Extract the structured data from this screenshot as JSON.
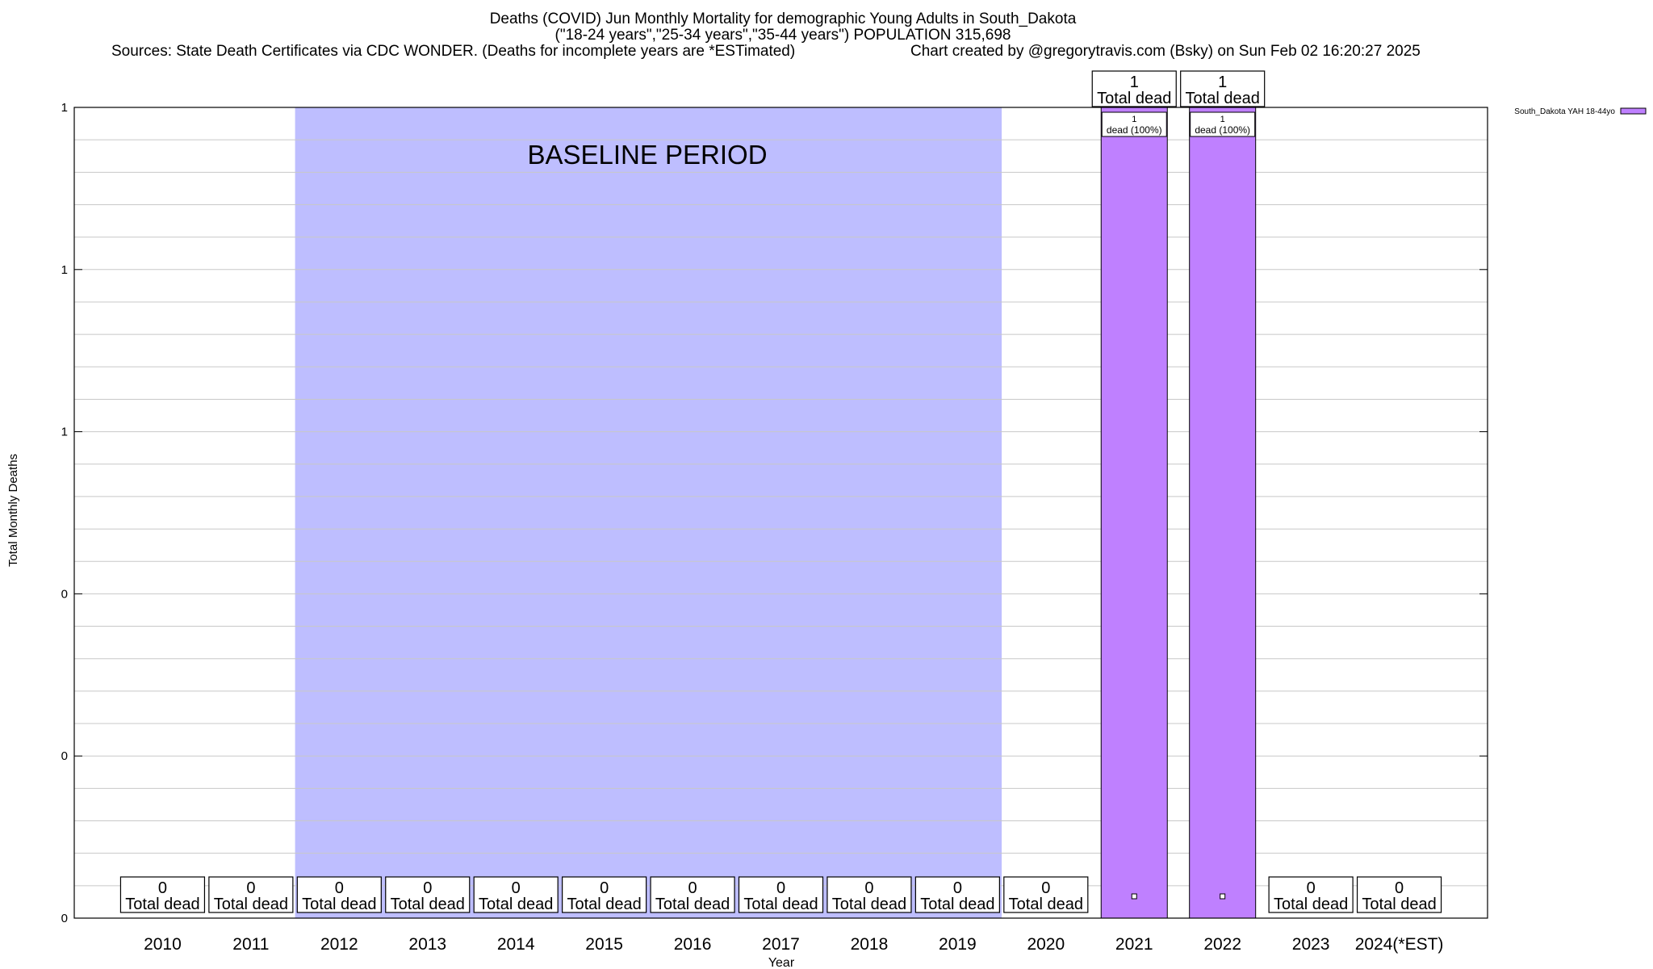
{
  "chart_data": {
    "type": "bar",
    "title": "Deaths (COVID) Jun Monthly Mortality for demographic Young Adults in South_Dakota",
    "subtitle": "(\"18-24 years\",\"25-34 years\",\"35-44 years\") POPULATION 315,698",
    "sources": "Sources: State Death Certificates via CDC WONDER. (Deaths for incomplete years are *ESTimated)",
    "credit": "Chart created by @gregorytravis.com (Bsky) on Sun Feb 02 16:20:27 2025",
    "xlabel": "Year",
    "ylabel": "Total Monthly Deaths",
    "ylim": [
      0,
      1
    ],
    "y_tick_labels": [
      "0",
      "0",
      "0",
      "1",
      "1",
      "1"
    ],
    "categories": [
      "2010",
      "2011",
      "2012",
      "2013",
      "2014",
      "2015",
      "2016",
      "2017",
      "2018",
      "2019",
      "2020",
      "2021",
      "2022",
      "2023",
      "2024(*EST)"
    ],
    "series": [
      {
        "name": "South_Dakota YAH 18-44yo",
        "color": "#bf80ff",
        "values": [
          0,
          0,
          0,
          0,
          0,
          0,
          0,
          0,
          0,
          0,
          0,
          1,
          1,
          0,
          0
        ]
      }
    ],
    "total_labels": [
      "0",
      "0",
      "0",
      "0",
      "0",
      "0",
      "0",
      "0",
      "0",
      "0",
      "0",
      "1",
      "1",
      "0",
      "0"
    ],
    "total_suffix": "Total dead",
    "bar_labels": {
      "2021": {
        "count": "1",
        "text": "dead (100%)"
      },
      "2022": {
        "count": "1",
        "text": "dead (100%)"
      }
    },
    "baseline": {
      "label": "BASELINE PERIOD",
      "start": "2012",
      "end": "2019",
      "color": "#bebeff"
    },
    "grid": true,
    "legend_position": "top-right"
  }
}
